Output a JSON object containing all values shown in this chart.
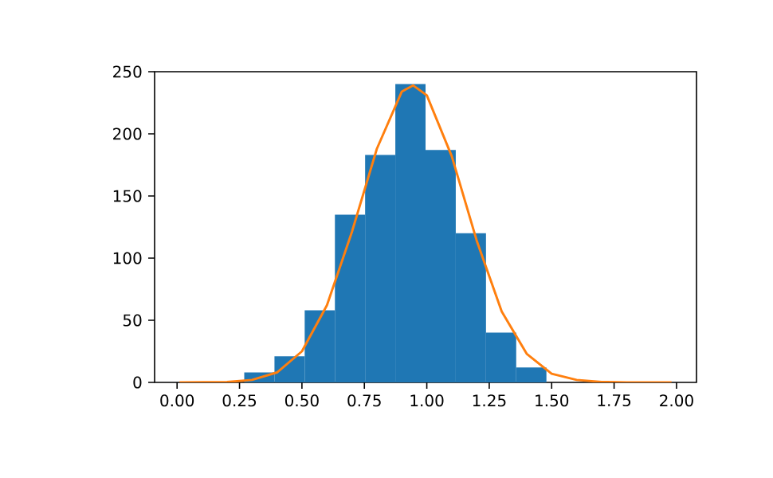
{
  "chart_data": {
    "type": "histogram",
    "bins": [
      0.269,
      0.39,
      0.511,
      0.632,
      0.753,
      0.874,
      0.995,
      1.116,
      1.237,
      1.358,
      1.479
    ],
    "values": [
      8,
      21,
      58,
      135,
      183,
      240,
      187,
      120,
      40,
      12
    ],
    "color": "#1f77b4",
    "series": [
      {
        "type": "line",
        "color": "#ff7f0e",
        "x": [
          0.01,
          0.2,
          0.3,
          0.4,
          0.5,
          0.6,
          0.7,
          0.8,
          0.9,
          0.945,
          1.0,
          1.1,
          1.2,
          1.3,
          1.4,
          1.5,
          1.6,
          1.7,
          1.8,
          1.98
        ],
        "values": [
          0,
          0.4,
          2,
          8,
          25,
          62,
          121,
          188,
          234,
          239,
          231,
          182,
          114,
          57,
          23,
          7,
          2,
          0.4,
          0.1,
          0
        ]
      }
    ],
    "xlim": [
      -0.09,
      2.08
    ],
    "ylim": [
      0,
      250
    ],
    "xticks": [
      {
        "value": 0,
        "label": "0.00"
      },
      {
        "value": 0.25,
        "label": "0.25"
      },
      {
        "value": 0.5,
        "label": "0.50"
      },
      {
        "value": 0.75,
        "label": "0.75"
      },
      {
        "value": 1,
        "label": "1.00"
      },
      {
        "value": 1.25,
        "label": "1.25"
      },
      {
        "value": 1.5,
        "label": "1.50"
      },
      {
        "value": 1.75,
        "label": "1.75"
      },
      {
        "value": 2,
        "label": "2.00"
      }
    ],
    "yticks": [
      0,
      50,
      100,
      150,
      200,
      250
    ]
  }
}
